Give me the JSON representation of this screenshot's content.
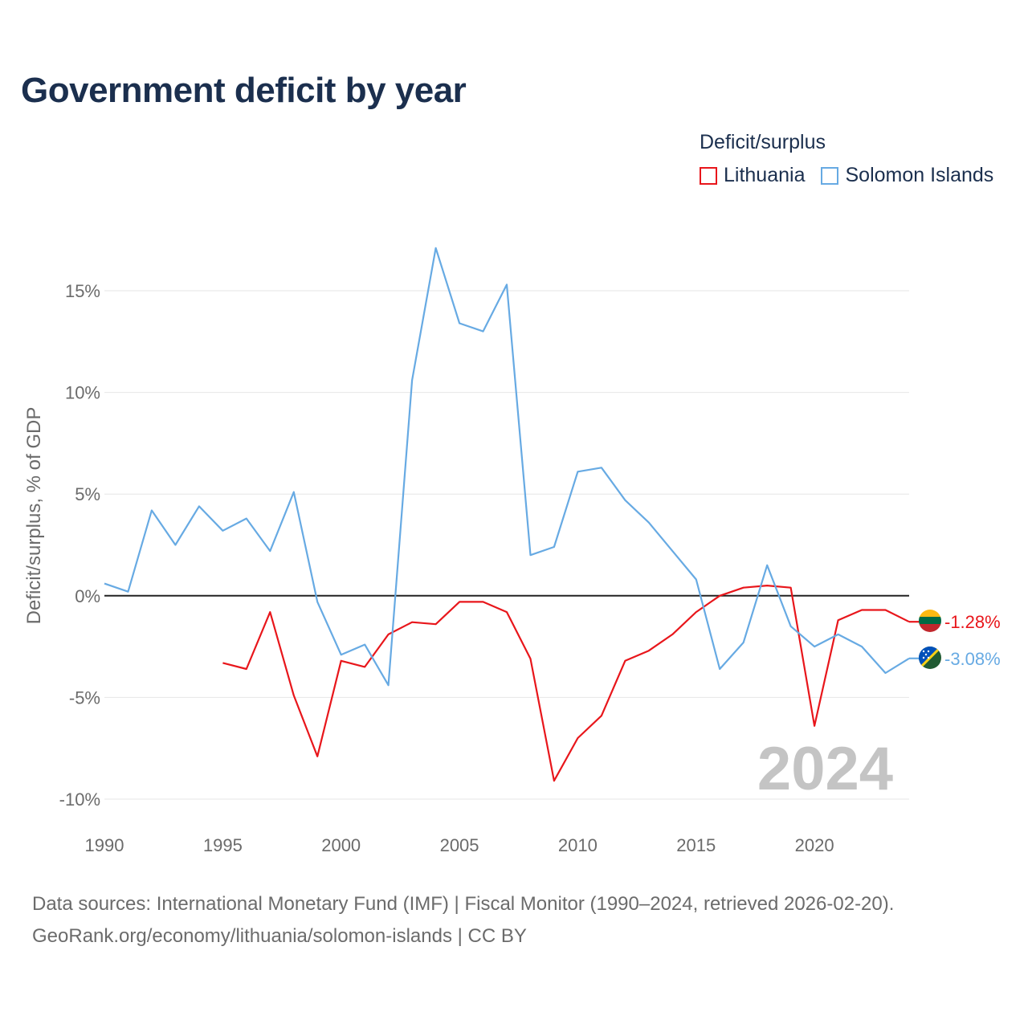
{
  "title": "Government deficit by year",
  "legend": {
    "title": "Deficit/surplus",
    "items": [
      {
        "label": "Lithuania",
        "color": "#e8161b"
      },
      {
        "label": "Solomon Islands",
        "color": "#67aae3"
      }
    ]
  },
  "footer": {
    "line1": "Data sources: International Monetary Fund (IMF) | Fiscal Monitor (1990–2024, retrieved 2026-02-20).",
    "line2": "GeoRank.org/economy/lithuania/solomon-islands | CC BY"
  },
  "chart_data": {
    "type": "line",
    "title": "Government deficit by year",
    "xlabel": "",
    "ylabel": "Deficit/surplus, % of GDP",
    "xlim": [
      1990,
      2024
    ],
    "ylim": [
      -10,
      17.5
    ],
    "xticks": [
      1990,
      1995,
      2000,
      2005,
      2010,
      2015,
      2020
    ],
    "xtick_labels": [
      "1990",
      "1995",
      "2000",
      "2005",
      "2010",
      "2015",
      "2020"
    ],
    "yticks": [
      -10,
      -5,
      0,
      5,
      10,
      15
    ],
    "ytick_labels": [
      "-10%",
      "-5%",
      "0%",
      "5%",
      "10%",
      "15%"
    ],
    "grid": true,
    "watermark_year": "2024",
    "series": [
      {
        "name": "Lithuania",
        "color": "#e8161b",
        "end_label": "-1.28%",
        "points": [
          [
            1995,
            -3.3
          ],
          [
            1996,
            -3.6
          ],
          [
            1997,
            -0.8
          ],
          [
            1998,
            -4.9
          ],
          [
            1999,
            -7.9
          ],
          [
            2000,
            -3.2
          ],
          [
            2001,
            -3.5
          ],
          [
            2002,
            -1.9
          ],
          [
            2003,
            -1.3
          ],
          [
            2004,
            -1.4
          ],
          [
            2005,
            -0.3
          ],
          [
            2006,
            -0.3
          ],
          [
            2007,
            -0.8
          ],
          [
            2008,
            -3.1
          ],
          [
            2009,
            -9.1
          ],
          [
            2010,
            -7.0
          ],
          [
            2011,
            -5.9
          ],
          [
            2012,
            -3.2
          ],
          [
            2013,
            -2.7
          ],
          [
            2014,
            -1.9
          ],
          [
            2015,
            -0.8
          ],
          [
            2016,
            0.0
          ],
          [
            2017,
            0.4
          ],
          [
            2018,
            0.5
          ],
          [
            2019,
            0.4
          ],
          [
            2020,
            -6.4
          ],
          [
            2021,
            -1.2
          ],
          [
            2022,
            -0.7
          ],
          [
            2023,
            -0.7
          ],
          [
            2024,
            -1.28
          ]
        ]
      },
      {
        "name": "Solomon Islands",
        "color": "#67aae3",
        "end_label": "-3.08%",
        "points": [
          [
            1990,
            0.6
          ],
          [
            1991,
            0.2
          ],
          [
            1992,
            4.2
          ],
          [
            1993,
            2.5
          ],
          [
            1994,
            4.4
          ],
          [
            1995,
            3.2
          ],
          [
            1996,
            3.8
          ],
          [
            1997,
            2.2
          ],
          [
            1998,
            5.1
          ],
          [
            1999,
            -0.3
          ],
          [
            2000,
            -2.9
          ],
          [
            2001,
            -2.4
          ],
          [
            2002,
            -4.4
          ],
          [
            2003,
            10.6
          ],
          [
            2004,
            17.1
          ],
          [
            2005,
            13.4
          ],
          [
            2006,
            13.0
          ],
          [
            2007,
            15.3
          ],
          [
            2008,
            2.0
          ],
          [
            2009,
            2.4
          ],
          [
            2010,
            6.1
          ],
          [
            2011,
            6.3
          ],
          [
            2012,
            4.7
          ],
          [
            2013,
            3.6
          ],
          [
            2014,
            2.2
          ],
          [
            2015,
            0.8
          ],
          [
            2016,
            -3.6
          ],
          [
            2017,
            -2.3
          ],
          [
            2018,
            1.5
          ],
          [
            2019,
            -1.5
          ],
          [
            2020,
            -2.5
          ],
          [
            2021,
            -1.9
          ],
          [
            2022,
            -2.5
          ],
          [
            2023,
            -3.8
          ],
          [
            2024,
            -3.08
          ]
        ]
      }
    ]
  }
}
